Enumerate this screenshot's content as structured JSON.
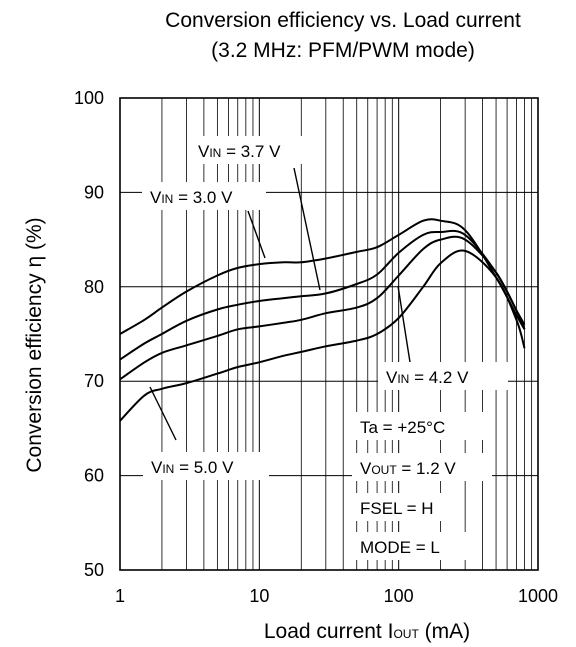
{
  "chart_data": {
    "type": "line",
    "title": "Conversion efficiency vs. Load current",
    "subtitle": "(3.2 MHz: PFM/PWM mode)",
    "xlabel": {
      "main": "Load current I",
      "sub": "OUT",
      "unit": " (mA)"
    },
    "ylabel": "Conversion efficiency η (%)",
    "xscale": "log",
    "xlim": [
      1,
      1000
    ],
    "ylim": [
      50,
      100
    ],
    "x_ticks": [
      {
        "value": 1,
        "label": "1"
      },
      {
        "value": 10,
        "label": "10"
      },
      {
        "value": 100,
        "label": "100"
      },
      {
        "value": 1000,
        "label": "1000"
      }
    ],
    "y_ticks": [
      {
        "value": 50,
        "label": "50"
      },
      {
        "value": 60,
        "label": "60"
      },
      {
        "value": 70,
        "label": "70"
      },
      {
        "value": 80,
        "label": "80"
      },
      {
        "value": 90,
        "label": "90"
      },
      {
        "value": 100,
        "label": "100"
      }
    ],
    "grid": true,
    "series": [
      {
        "name": "VIN = 3.0 V",
        "x": [
          1,
          1.5,
          2,
          3,
          5,
          7,
          10,
          15,
          20,
          30,
          50,
          70,
          100,
          150,
          200,
          300,
          500,
          700,
          800
        ],
        "y": [
          75,
          76.5,
          77.8,
          79.5,
          81.2,
          82,
          82.4,
          82.6,
          82.6,
          83,
          83.7,
          84.2,
          85.5,
          87,
          87,
          86,
          81,
          77,
          75.5
        ]
      },
      {
        "name": "VIN = 3.7 V",
        "x": [
          1,
          1.5,
          2,
          3,
          5,
          7,
          10,
          15,
          20,
          30,
          50,
          70,
          100,
          150,
          200,
          300,
          500,
          700,
          800
        ],
        "y": [
          72.3,
          74,
          75,
          76.4,
          77.6,
          78.1,
          78.5,
          78.8,
          79,
          79.3,
          80.3,
          81.3,
          83.6,
          85.5,
          85.8,
          85.5,
          81.5,
          77.5,
          76
        ]
      },
      {
        "name": "VIN = 4.2 V",
        "x": [
          1,
          1.5,
          2,
          3,
          5,
          7,
          10,
          15,
          20,
          30,
          50,
          70,
          100,
          150,
          200,
          300,
          500,
          700,
          800
        ],
        "y": [
          70.2,
          72,
          73,
          73.8,
          74.8,
          75.5,
          75.8,
          76.2,
          76.5,
          77.2,
          77.8,
          78.8,
          81.2,
          84,
          85,
          85,
          81.5,
          77.5,
          75.5
        ]
      },
      {
        "name": "VIN = 5.0 V",
        "x": [
          1,
          1.5,
          2,
          3,
          5,
          7,
          10,
          15,
          20,
          30,
          50,
          70,
          100,
          150,
          200,
          300,
          500,
          700,
          800
        ],
        "y": [
          65.8,
          68.5,
          69.2,
          69.8,
          70.8,
          71.5,
          72,
          72.7,
          73.1,
          73.7,
          74.3,
          75,
          76.7,
          80,
          82.5,
          83.8,
          81,
          76.5,
          73.5
        ]
      }
    ],
    "annotations": [
      {
        "id": "vin30",
        "prefix": "V",
        "sub": "IN",
        "rest": " = 3.0 V"
      },
      {
        "id": "vin37",
        "prefix": "V",
        "sub": "IN",
        "rest": " = 3.7 V"
      },
      {
        "id": "vin42",
        "prefix": "V",
        "sub": "IN",
        "rest": " = 4.2 V"
      },
      {
        "id": "vin50",
        "prefix": "V",
        "sub": "IN",
        "rest": " = 5.0 V"
      },
      {
        "id": "ta",
        "prefix": "Ta = +25°C",
        "sub": "",
        "rest": ""
      },
      {
        "id": "vout",
        "prefix": "V",
        "sub": "OUT",
        "rest": " = 1.2 V"
      },
      {
        "id": "fsel",
        "prefix": "FSEL = H",
        "sub": "",
        "rest": ""
      },
      {
        "id": "mode",
        "prefix": "MODE = L",
        "sub": "",
        "rest": ""
      }
    ]
  }
}
